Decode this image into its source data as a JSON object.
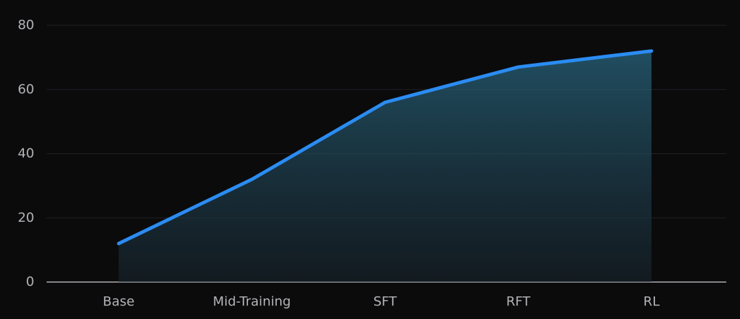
{
  "chart_data": {
    "type": "area",
    "categories": [
      "Base",
      "Mid-Training",
      "SFT",
      "RFT",
      "RL"
    ],
    "values": [
      12,
      32,
      56,
      67,
      72
    ],
    "color": "#2b8cf2",
    "ylim": [
      0,
      80
    ],
    "yticks": [
      0,
      20,
      40,
      60,
      80
    ],
    "grid": true
  }
}
